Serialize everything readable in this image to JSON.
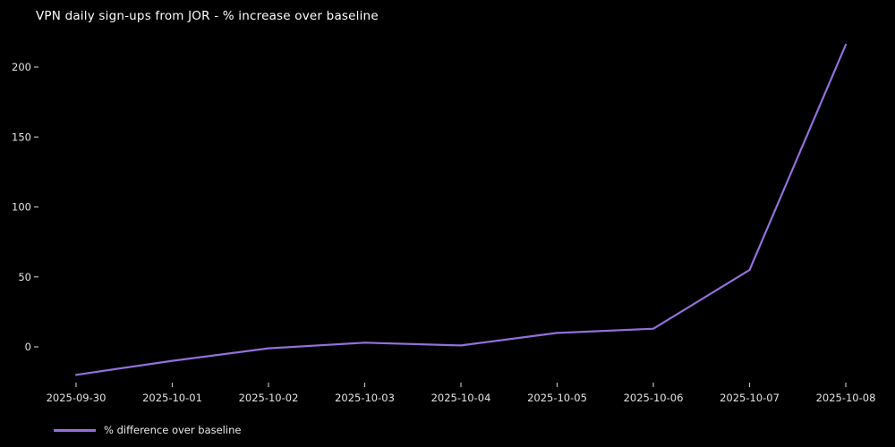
{
  "title": "VPN daily sign-ups from JOR - % increase over baseline",
  "legend": {
    "label": "% difference over baseline"
  },
  "colors": {
    "background": "#000000",
    "line": "#9370db",
    "title_text": "#ffffff",
    "tick_text": "#e3e3e3",
    "tick_mark": "#bbbbbb"
  },
  "chart_data": {
    "type": "line",
    "title": "VPN daily sign-ups from JOR - % increase over baseline",
    "xlabel": "",
    "ylabel": "",
    "categories": [
      "2025-09-30",
      "2025-10-01",
      "2025-10-02",
      "2025-10-03",
      "2025-10-04",
      "2025-10-05",
      "2025-10-06",
      "2025-10-07",
      "2025-10-08"
    ],
    "series": [
      {
        "name": "% difference over baseline",
        "values": [
          -20,
          -10,
          -1,
          3,
          1,
          10,
          13,
          55,
          216
        ]
      }
    ],
    "yticks": [
      0,
      50,
      100,
      150,
      200
    ],
    "ylim": [
      -28,
      222
    ],
    "grid": false,
    "spines": false,
    "legend_position": "bottom-left",
    "background": "dark"
  }
}
